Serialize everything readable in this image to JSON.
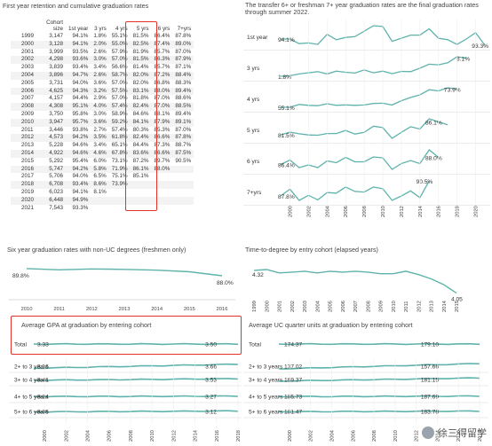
{
  "colors": {
    "line": "#5fb3ac",
    "highlight": "#e3312b",
    "text": "#333333",
    "grid": "#e4e4e4"
  },
  "titles": {
    "retention": "First year retention and cumulative graduation rates",
    "transfer": "The transfer 6+ or freshman 7+ year graduation rates are the final graduation rates through summer 2022.",
    "six_year": "Six year graduation rates with non-UC degrees (freshmen only)",
    "time_to_degree": "Time-to-degree by entry cohort (elapsed years)",
    "gpa": "Average GPA at graduation by entering cohort",
    "units": "Average UC quarter units at graduation by entering cohort"
  },
  "retention_table": {
    "headers": [
      "",
      "Cohort size",
      "1st year",
      "3 yrs",
      "4 yrs",
      "5 yrs",
      "6 yrs",
      "7+yrs"
    ],
    "rows": [
      [
        "1999",
        "3,147",
        "94.1%",
        "1.8%",
        "55.1%",
        "81.5%",
        "86.4%",
        "87.8%"
      ],
      [
        "2000",
        "3,128",
        "94.1%",
        "2.0%",
        "55.0%",
        "82.5%",
        "87.4%",
        "89.0%"
      ],
      [
        "2001",
        "3,999",
        "93.5%",
        "2.6%",
        "57.9%",
        "81.9%",
        "85.7%",
        "87.0%"
      ],
      [
        "2002",
        "4,298",
        "93.6%",
        "3.0%",
        "57.0%",
        "81.5%",
        "86.3%",
        "87.9%"
      ],
      [
        "2003",
        "3,839",
        "93.4%",
        "3.4%",
        "56.6%",
        "81.4%",
        "85.7%",
        "87.1%"
      ],
      [
        "2004",
        "3,896",
        "94.7%",
        "2.6%",
        "58.7%",
        "82.0%",
        "87.2%",
        "88.4%"
      ],
      [
        "2005",
        "3,731",
        "94.0%",
        "3.6%",
        "57.0%",
        "82.0%",
        "86.8%",
        "88.3%"
      ],
      [
        "2006",
        "4,625",
        "94.3%",
        "3.2%",
        "57.5%",
        "83.1%",
        "88.0%",
        "89.4%"
      ],
      [
        "2007",
        "4,157",
        "94.4%",
        "2.9%",
        "57.0%",
        "81.8%",
        "87.0%",
        "88.6%"
      ],
      [
        "2008",
        "4,308",
        "95.1%",
        "4.0%",
        "57.4%",
        "82.4%",
        "87.0%",
        "88.5%"
      ],
      [
        "2009",
        "3,750",
        "95.8%",
        "3.0%",
        "58.9%",
        "84.6%",
        "88.1%",
        "89.4%"
      ],
      [
        "2010",
        "3,947",
        "95.7%",
        "3.6%",
        "59.2%",
        "84.1%",
        "87.9%",
        "89.1%"
      ],
      [
        "2011",
        "3,446",
        "93.8%",
        "2.7%",
        "57.4%",
        "80.3%",
        "85.3%",
        "87.0%"
      ],
      [
        "2012",
        "4,573",
        "94.2%",
        "3.5%",
        "61.8%",
        "82.4%",
        "86.6%",
        "87.8%"
      ],
      [
        "2013",
        "5,228",
        "94.6%",
        "3.4%",
        "65.1%",
        "84.4%",
        "87.3%",
        "88.7%"
      ],
      [
        "2014",
        "4,922",
        "94.6%",
        "4.6%",
        "67.8%",
        "83.6%",
        "86.6%",
        "87.5%"
      ],
      [
        "2015",
        "5,292",
        "95.4%",
        "6.0%",
        "73.1%",
        "87.2%",
        "89.7%",
        "90.5%"
      ],
      [
        "2016",
        "5,747",
        "94.2%",
        "5.8%",
        "71.9%",
        "86.1%",
        "88.0%",
        ""
      ],
      [
        "2017",
        "5,706",
        "94.0%",
        "6.5%",
        "75.1%",
        "85.1%",
        "",
        ""
      ],
      [
        "2018",
        "6,708",
        "93.4%",
        "8.6%",
        "73.9%",
        "",
        "",
        ""
      ],
      [
        "2019",
        "6,023",
        "94.1%",
        "8.1%",
        "",
        "",
        "",
        ""
      ],
      [
        "2020",
        "6,448",
        "94.9%",
        "",
        "",
        "",
        "",
        ""
      ],
      [
        "2021",
        "7,543",
        "93.3%",
        "",
        "",
        "",
        "",
        ""
      ]
    ]
  },
  "chart_data": [
    {
      "id": "cumulative_rates_small_multiples",
      "type": "line",
      "x": [
        1999,
        2000,
        2001,
        2002,
        2003,
        2004,
        2005,
        2006,
        2007,
        2008,
        2009,
        2010,
        2011,
        2012,
        2013,
        2014,
        2015,
        2016,
        2017,
        2018,
        2019,
        2020,
        2021
      ],
      "x_ticks": [
        2000,
        2002,
        2004,
        2006,
        2008,
        2010,
        2012,
        2014,
        2016,
        2018,
        2020
      ],
      "series": [
        {
          "name": "1st year",
          "values": [
            94.1,
            94.1,
            93.5,
            93.6,
            93.4,
            94.7,
            94.0,
            94.3,
            94.4,
            95.1,
            95.8,
            95.7,
            93.8,
            94.2,
            94.6,
            94.6,
            95.4,
            94.2,
            94.0,
            93.4,
            94.1,
            94.9,
            93.3
          ],
          "labels": [
            [
              0,
              "94.1%"
            ],
            [
              22,
              "93.3%"
            ]
          ]
        },
        {
          "name": "3 yrs",
          "values": [
            1.8,
            2.0,
            2.6,
            3.0,
            3.4,
            2.6,
            3.6,
            3.2,
            2.9,
            4.0,
            3.0,
            3.6,
            2.7,
            3.5,
            3.4,
            4.6,
            6.0,
            5.8,
            6.5,
            8.6,
            8.1,
            null,
            null
          ],
          "labels": [
            [
              0,
              "1.8%"
            ],
            [
              20,
              "8.1%"
            ]
          ]
        },
        {
          "name": "4 yrs",
          "values": [
            55.1,
            55.0,
            57.9,
            57.0,
            56.6,
            58.7,
            57.0,
            57.5,
            57.0,
            57.4,
            58.9,
            59.2,
            57.4,
            61.8,
            65.1,
            67.8,
            73.1,
            71.9,
            75.1,
            73.9,
            null,
            null,
            null
          ],
          "labels": [
            [
              0,
              "55.1%"
            ],
            [
              19,
              "73.9%"
            ]
          ]
        },
        {
          "name": "5 yrs",
          "values": [
            81.5,
            82.5,
            81.9,
            81.5,
            81.4,
            82.0,
            82.0,
            83.1,
            81.8,
            82.4,
            84.6,
            84.1,
            80.3,
            82.4,
            84.4,
            83.6,
            87.2,
            86.1,
            85.1,
            null,
            null,
            null,
            null
          ],
          "labels": [
            [
              0,
              "81.5%"
            ],
            [
              17,
              "86.1%"
            ]
          ]
        },
        {
          "name": "6 yrs",
          "values": [
            86.4,
            87.4,
            85.7,
            86.3,
            85.7,
            87.2,
            86.8,
            88.0,
            87.0,
            87.0,
            88.1,
            87.9,
            85.3,
            86.6,
            87.3,
            86.6,
            89.7,
            88.0,
            null,
            null,
            null,
            null,
            null
          ],
          "labels": [
            [
              0,
              "86.4%"
            ],
            [
              17,
              "88.0%"
            ]
          ]
        },
        {
          "name": "7+yrs",
          "values": [
            87.8,
            89.0,
            87.0,
            87.9,
            87.1,
            88.4,
            88.3,
            89.4,
            88.6,
            88.5,
            89.4,
            89.1,
            87.0,
            87.8,
            88.7,
            87.5,
            90.5,
            null,
            null,
            null,
            null,
            null,
            null
          ],
          "labels": [
            [
              0,
              "87.8%"
            ],
            [
              16,
              "90.5%"
            ]
          ]
        }
      ]
    },
    {
      "id": "six_year_non_uc",
      "type": "line",
      "x": [
        2010,
        2011,
        2012,
        2013,
        2014,
        2015,
        2016
      ],
      "series": [
        {
          "values": [
            89.8,
            89.5,
            89.7,
            89.6,
            89.4,
            89.0,
            88.0
          ],
          "labels": [
            [
              0,
              "89.8%"
            ],
            [
              6,
              "88.0%"
            ]
          ]
        }
      ]
    },
    {
      "id": "time_to_degree",
      "type": "line",
      "x": [
        1999,
        2000,
        2001,
        2002,
        2003,
        2004,
        2005,
        2006,
        2007,
        2008,
        2009,
        2010,
        2011,
        2012,
        2013,
        2014,
        2015
      ],
      "series": [
        {
          "values": [
            4.32,
            4.33,
            4.29,
            4.3,
            4.31,
            4.29,
            4.31,
            4.3,
            4.31,
            4.3,
            4.28,
            4.28,
            4.31,
            4.27,
            4.22,
            4.15,
            4.05
          ],
          "labels": [
            [
              0,
              "4.32"
            ],
            [
              16,
              "4.05"
            ]
          ]
        }
      ]
    },
    {
      "id": "avg_gpa",
      "type": "line",
      "x_ticks": [
        2000,
        2002,
        2004,
        2006,
        2008,
        2010,
        2012,
        2014,
        2016,
        2018
      ],
      "rows": [
        {
          "name": "Total",
          "start": "3.33",
          "end": "3.50"
        },
        {
          "name": "2+ to 3 years",
          "start": "3.36",
          "end": "3.66"
        },
        {
          "name": "3+ to 4 years",
          "start": "3.41",
          "end": "3.53"
        },
        {
          "name": "4+ to 5 years",
          "start": "3.24",
          "end": "3.27"
        },
        {
          "name": "5+ to 6 years",
          "start": "3.05",
          "end": "3.12"
        }
      ]
    },
    {
      "id": "avg_units",
      "type": "line",
      "x_ticks": [
        2000,
        2002,
        2004,
        2006,
        2008,
        2010,
        2012,
        2014,
        2016,
        2018
      ],
      "rows": [
        {
          "name": "Total",
          "start": "174.37",
          "end": "179.10"
        },
        {
          "name": "2+ to 3 years",
          "start": "137.02",
          "end": "157.66"
        },
        {
          "name": "3+ to 4 years",
          "start": "169.37",
          "end": "181.15"
        },
        {
          "name": "4+ to 5 years",
          "start": "185.73",
          "end": "187.69"
        },
        {
          "name": "5+ to 6 years",
          "start": "181.47",
          "end": "183.78"
        }
      ]
    }
  ],
  "watermark": "徐三得留学"
}
